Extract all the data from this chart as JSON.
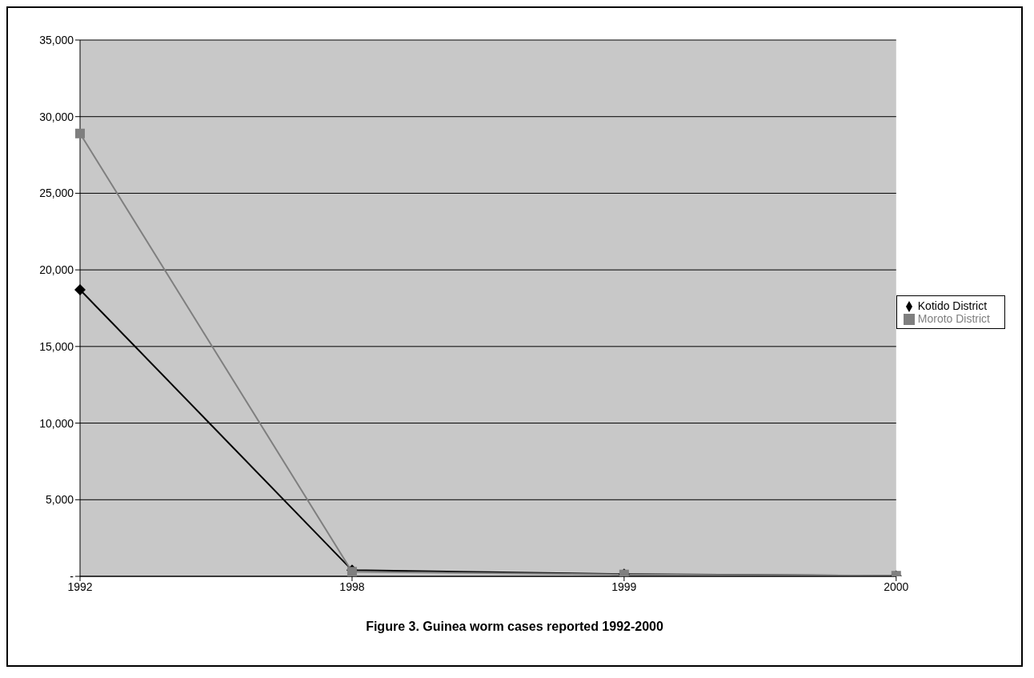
{
  "chart_data": {
    "type": "line",
    "title": "Figure 3. Guinea worm cases reported 1992-2000",
    "categories": [
      "1992",
      "1998",
      "1999",
      "2000"
    ],
    "series": [
      {
        "name": "Kotido District",
        "color": "#000000",
        "marker": "diamond",
        "values": [
          18700,
          400,
          150,
          30
        ]
      },
      {
        "name": "Moroto District",
        "color": "#7f7f7f",
        "marker": "square",
        "values": [
          28900,
          300,
          120,
          40
        ]
      }
    ],
    "ylim": [
      0,
      35000
    ],
    "yticks": [
      {
        "value": 0,
        "label": "-"
      },
      {
        "value": 5000,
        "label": "5,000"
      },
      {
        "value": 10000,
        "label": "10,000"
      },
      {
        "value": 15000,
        "label": "15,000"
      },
      {
        "value": 20000,
        "label": "20,000"
      },
      {
        "value": 25000,
        "label": "25,000"
      },
      {
        "value": 30000,
        "label": "30,000"
      },
      {
        "value": 35000,
        "label": "35,000"
      }
    ],
    "grid": "y",
    "legend": "right"
  }
}
